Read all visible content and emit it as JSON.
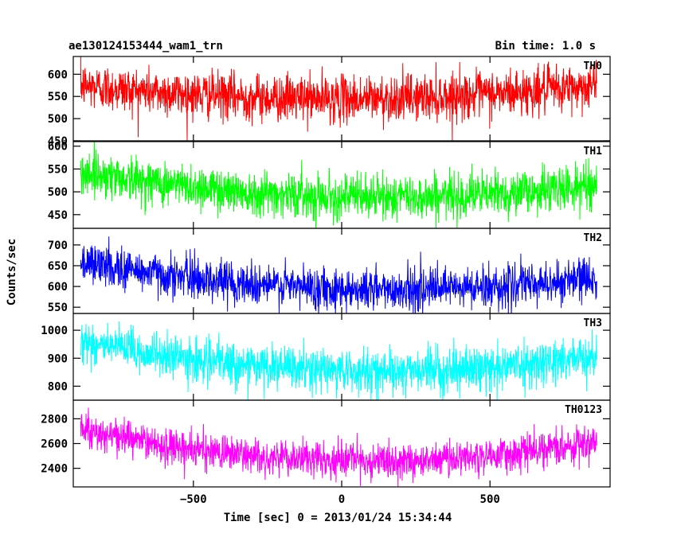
{
  "header": {
    "left": "ae130124153444_wam1_trn",
    "right": "Bin time: 1.0 s"
  },
  "chart_data": {
    "type": "line",
    "xlabel": "Time [sec] 0 = 2013/01/24 15:34:44",
    "ylabel": "Counts/sec",
    "xlim": [
      -905,
      905
    ],
    "x_ticks": [
      -500,
      0,
      500
    ],
    "x_tick_labels": [
      "−500",
      "0",
      "500"
    ],
    "x_range": [
      -880,
      860
    ],
    "x_step": 1.0,
    "panels": [
      {
        "label": "TH0",
        "color": "#ff0000",
        "ylim": [
          450,
          640
        ],
        "yticks": [
          450,
          500,
          550,
          600
        ],
        "trend": {
          "start": 575,
          "mid": 545,
          "end": 575
        },
        "noise_sd": 26
      },
      {
        "label": "TH1",
        "color": "#00ff00",
        "ylim": [
          420,
          610
        ],
        "yticks": [
          450,
          500,
          550,
          600
        ],
        "trend": {
          "start": 545,
          "mid": 490,
          "end": 515
        },
        "noise_sd": 24
      },
      {
        "label": "TH2",
        "color": "#0000ff",
        "ylim": [
          535,
          740
        ],
        "yticks": [
          550,
          600,
          650,
          700
        ],
        "trend": {
          "start": 660,
          "mid": 595,
          "end": 620
        },
        "noise_sd": 25
      },
      {
        "label": "TH3",
        "color": "#00ffff",
        "ylim": [
          750,
          1060
        ],
        "yticks": [
          800,
          900,
          1000
        ],
        "trend": {
          "start": 960,
          "mid": 855,
          "end": 910
        },
        "noise_sd": 38
      },
      {
        "label": "TH0123",
        "color": "#ff00ff",
        "ylim": [
          2250,
          2950
        ],
        "yticks": [
          2400,
          2600,
          2800
        ],
        "trend": {
          "start": 2720,
          "mid": 2460,
          "end": 2620
        },
        "noise_sd": 70
      }
    ]
  }
}
